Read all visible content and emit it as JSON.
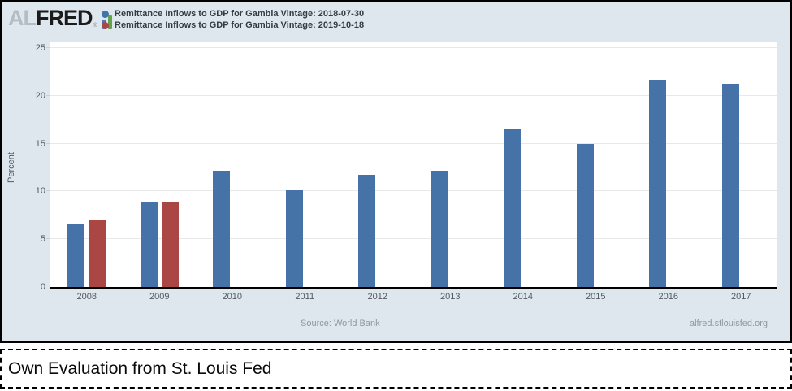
{
  "header": {
    "logo": {
      "part1": "AL",
      "part2": "FRED",
      "registered": "®"
    },
    "legend": [
      {
        "label": "Remittance Inflows to GDP for Gambia Vintage: 2018-07-30",
        "color": "#4572a7"
      },
      {
        "label": "Remittance Inflows to GDP for Gambia Vintage: 2019-10-18",
        "color": "#aa4643"
      }
    ]
  },
  "chart_data": {
    "type": "bar",
    "title": "",
    "categories": [
      "2008",
      "2009",
      "2010",
      "2011",
      "2012",
      "2013",
      "2014",
      "2015",
      "2016",
      "2017"
    ],
    "series": [
      {
        "name": "Remittance Inflows to GDP for Gambia Vintage: 2018-07-30",
        "color": "#4572a7",
        "values": [
          6.6,
          8.9,
          12.2,
          10.1,
          11.7,
          12.2,
          16.5,
          15.0,
          21.6,
          21.3
        ]
      },
      {
        "name": "Remittance Inflows to GDP for Gambia Vintage: 2019-10-18",
        "color": "#aa4643",
        "values": [
          7.0,
          8.9,
          null,
          null,
          null,
          null,
          null,
          null,
          null,
          null
        ]
      }
    ],
    "xlabel": "",
    "ylabel": "Percent",
    "ylim": [
      0,
      25
    ],
    "yticks": [
      0,
      5,
      10,
      15,
      20,
      25
    ],
    "grid": true,
    "legend_position": "top-left",
    "plot_background": "#ffffff",
    "outer_background": "#dee6ee"
  },
  "footer": {
    "source": "Source: World Bank",
    "site": "alfred.stlouisfed.org"
  },
  "caption": {
    "text": "Own Evaluation from St. Louis Fed"
  }
}
